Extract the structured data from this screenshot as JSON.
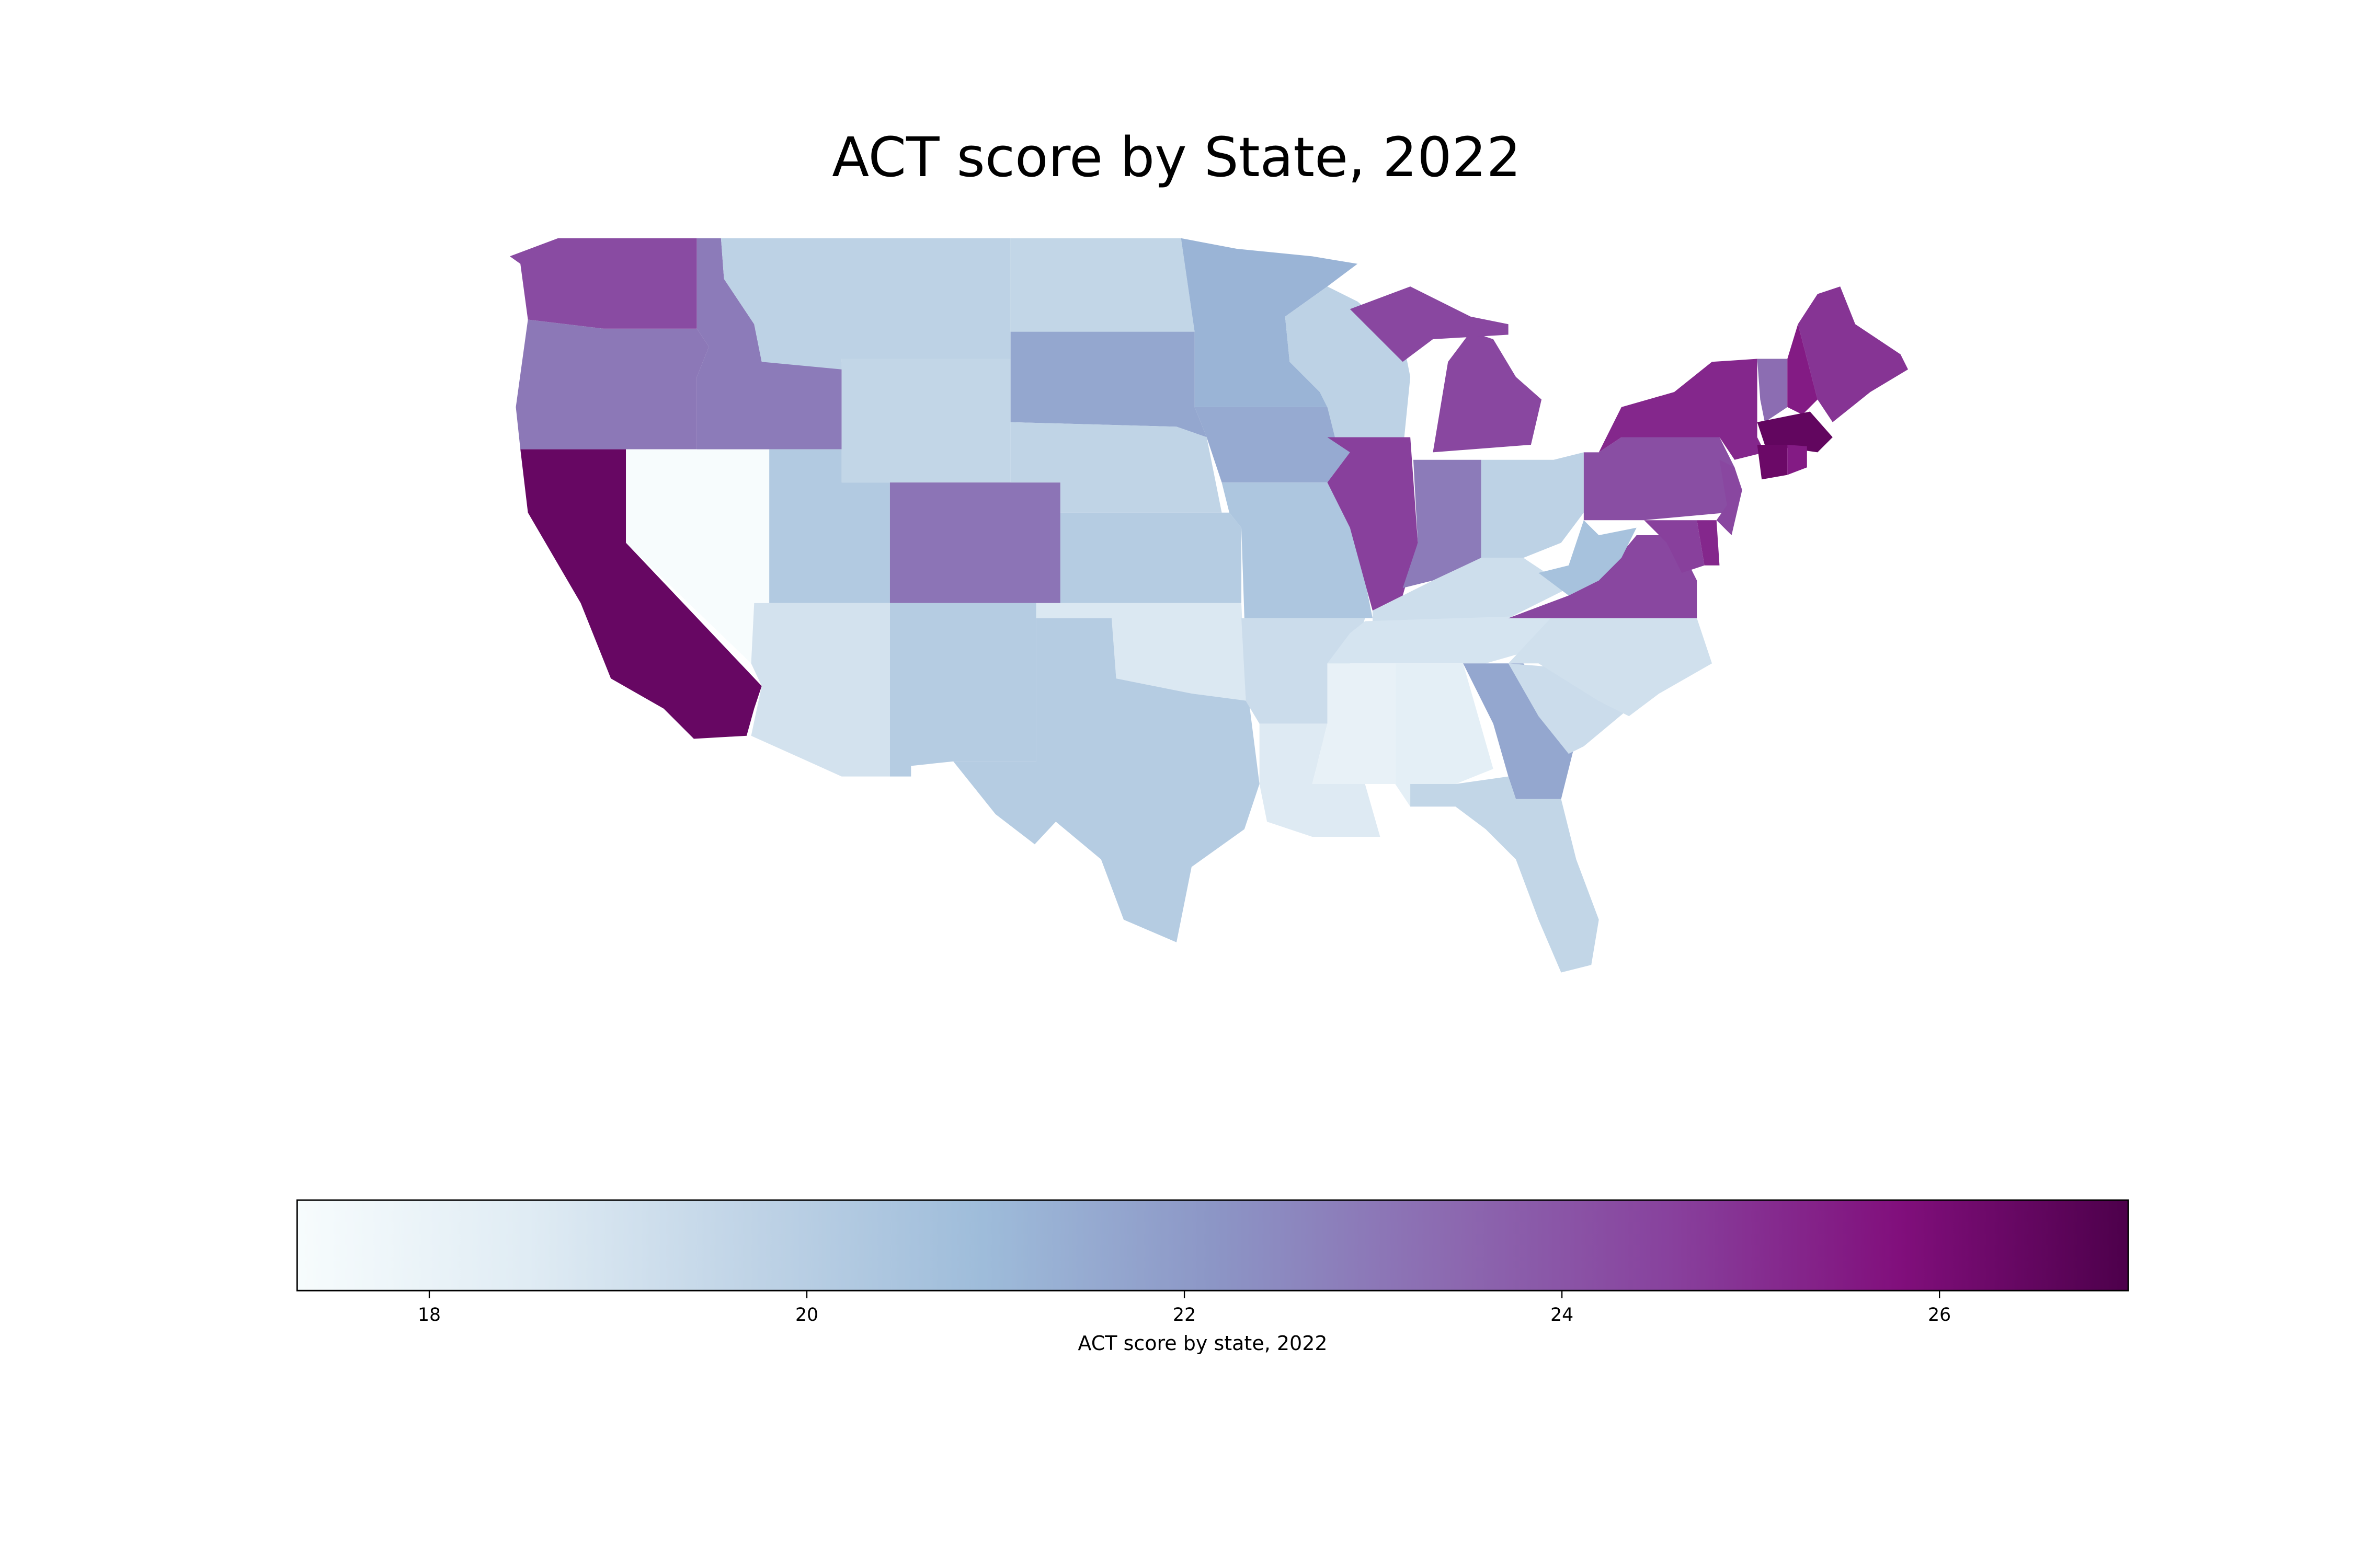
{
  "title": "ACT score by State, 2022",
  "chart_data": {
    "type": "choropleth",
    "title": "ACT score by State, 2022",
    "colormap": "BuPu",
    "colormap_stops": [
      "#f7fcfd",
      "#e0ecf4",
      "#bfd3e6",
      "#9ebcda",
      "#8c96c6",
      "#8c6bb1",
      "#88419d",
      "#810f7c",
      "#4d004b"
    ],
    "value_range": [
      17.3,
      27.0
    ],
    "colorbar": {
      "label": "ACT score by state, 2022",
      "ticks": [
        18,
        20,
        22,
        24,
        26
      ],
      "tick_labels": [
        "18",
        "20",
        "22",
        "24",
        "26"
      ],
      "orientation": "horizontal",
      "placement": "bottom"
    },
    "states": {
      "WA": 24.3,
      "OR": 23.0,
      "CA": 26.4,
      "NV": 17.3,
      "ID": 22.9,
      "MT": 19.8,
      "WY": 19.6,
      "UT": 20.2,
      "CO": 23.1,
      "AZ": 19.0,
      "NM": 20.1,
      "ND": 19.6,
      "SD": 21.6,
      "NE": 19.7,
      "KS": 20.1,
      "OK": 18.7,
      "TX": 20.1,
      "MN": 21.2,
      "IA": 21.5,
      "MO": 20.4,
      "AR": 19.3,
      "LA": 18.6,
      "WI": 19.8,
      "IL": 24.6,
      "IN": 22.9,
      "MI": 24.4,
      "OH": 19.8,
      "KY": 19.2,
      "TN": 18.9,
      "MS": 18.1,
      "AL": 18.3,
      "GA": 21.6,
      "FL": 19.6,
      "SC": 19.3,
      "NC": 19.1,
      "VA": 24.4,
      "WV": 20.6,
      "PA": 24.2,
      "NY": 25.2,
      "VT": 23.3,
      "NH": 25.5,
      "ME": 24.9,
      "MA": 26.5,
      "CT": 26.3,
      "RI": 25.5,
      "NJ": 24.4,
      "DE": 25.2,
      "MD": 24.6
    }
  }
}
